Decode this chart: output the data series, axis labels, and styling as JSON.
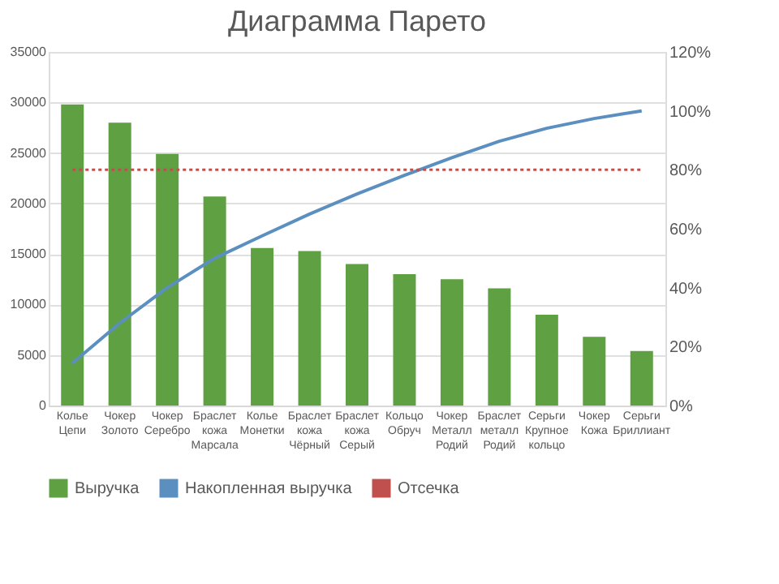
{
  "chart_data": {
    "type": "bar",
    "title": "Диаграмма Парето",
    "categories": [
      "Колье Цепи",
      "Чокер Золото",
      "Чокер Серебро",
      "Браслет кожа Марсала",
      "Колье Монетки",
      "Браслет кожа Чёрный",
      "Браслет кожа Серый",
      "Кольцо Обруч",
      "Чокер Металл Родий",
      "Браслет металл Родий",
      "Серьги Крупное кольцо",
      "Чокер Кожа",
      "Серьги Бриллиант"
    ],
    "series": [
      {
        "name": "Выручка",
        "color": "#5fa043",
        "values": [
          29800,
          28000,
          24900,
          20700,
          15600,
          15300,
          14000,
          13000,
          12500,
          11600,
          9000,
          6800,
          5400
        ]
      },
      {
        "name": "Накопленная выручка",
        "type": "line",
        "axis": "y2",
        "color": "#5b8fc0",
        "line_style": "solid",
        "values": [
          14.4,
          28.0,
          40.0,
          50.0,
          57.6,
          65.0,
          71.8,
          78.1,
          84.1,
          89.7,
          94.1,
          97.4,
          100
        ]
      },
      {
        "name": "Отсечка",
        "type": "line",
        "axis": "y2",
        "color": "#c0504d",
        "line_style": "dotted",
        "values": [
          80,
          80,
          80,
          80,
          80,
          80,
          80,
          80,
          80,
          80,
          80,
          80,
          80
        ]
      }
    ],
    "ylim": [
      0,
      35000
    ],
    "yticks": [
      0,
      5000,
      10000,
      15000,
      20000,
      25000,
      30000,
      35000
    ],
    "y2lim": [
      0,
      120
    ],
    "y2ticks": [
      {
        "value": 0,
        "label": "0%"
      },
      {
        "value": 20,
        "label": "20%"
      },
      {
        "value": 40,
        "label": "40%"
      },
      {
        "value": 60,
        "label": "60%"
      },
      {
        "value": 80,
        "label": "80%"
      },
      {
        "value": 100,
        "label": "100%"
      },
      {
        "value": 120,
        "label": "120%"
      }
    ],
    "grid": "y",
    "legend": "bottom",
    "marker": "none"
  }
}
